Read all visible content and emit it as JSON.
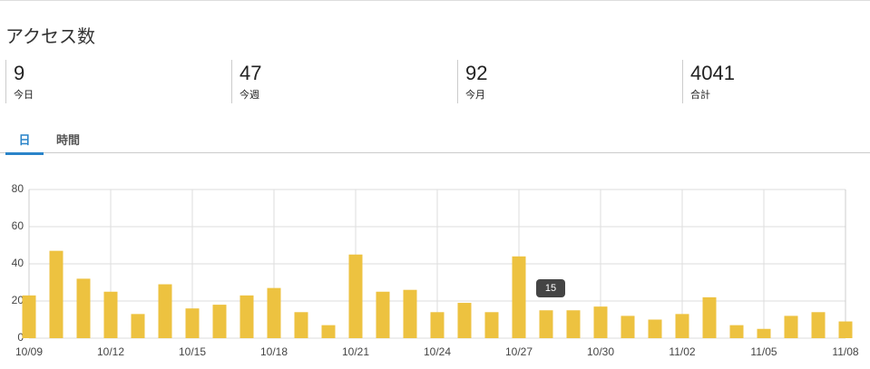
{
  "header": {
    "title": "アクセス数"
  },
  "stats": [
    {
      "value": "9",
      "label": "今日"
    },
    {
      "value": "47",
      "label": "今週"
    },
    {
      "value": "92",
      "label": "今月"
    },
    {
      "value": "4041",
      "label": "合計"
    }
  ],
  "tabs": [
    "日",
    "時間"
  ],
  "chart_data": {
    "type": "bar",
    "categories": [
      "10/09",
      null,
      null,
      "10/12",
      null,
      null,
      "10/15",
      null,
      null,
      "10/18",
      null,
      null,
      "10/21",
      null,
      null,
      "10/24",
      null,
      null,
      "10/27",
      null,
      null,
      "10/30",
      null,
      null,
      "11/02",
      null,
      null,
      "11/05",
      null,
      null,
      "11/08"
    ],
    "values": [
      23,
      47,
      32,
      25,
      13,
      29,
      16,
      18,
      23,
      27,
      14,
      7,
      45,
      25,
      26,
      14,
      19,
      14,
      44,
      15,
      15,
      17,
      12,
      10,
      13,
      22,
      7,
      5,
      12,
      14,
      9
    ],
    "color": "#edc240",
    "ylim": [
      0,
      80
    ],
    "yticks": [
      0,
      20,
      40,
      60,
      80
    ],
    "grid": true
  }
}
